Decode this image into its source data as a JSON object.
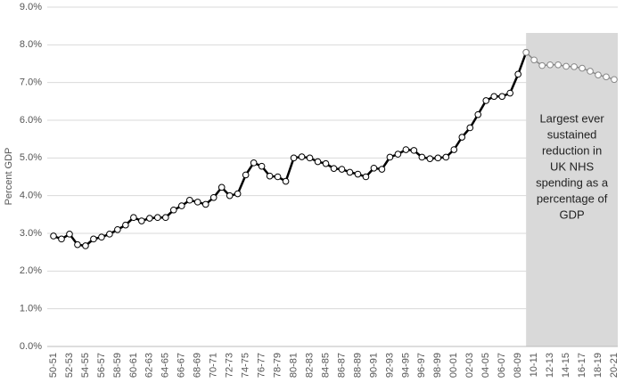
{
  "chart_data": {
    "type": "line",
    "y_label": "Percent GDP",
    "annotation": [
      "Largest ever",
      "sustained",
      "reduction in",
      "UK NHS",
      "spending as a",
      "percentage of",
      "GDP"
    ],
    "categories": [
      "50-51",
      null,
      "52-53",
      null,
      "54-55",
      null,
      "56-57",
      null,
      "58-59",
      null,
      "60-61",
      null,
      "62-63",
      null,
      "64-65",
      null,
      "66-67",
      null,
      "68-69",
      null,
      "70-71",
      null,
      "72-73",
      null,
      "74-75",
      null,
      "76-77",
      null,
      "78-79",
      null,
      "80-81",
      null,
      "82-83",
      null,
      "84-85",
      null,
      "86-87",
      null,
      "88-89",
      null,
      "90-91",
      null,
      "92-93",
      null,
      "94-95",
      null,
      "96-97",
      null,
      "98-99",
      null,
      "00-01",
      null,
      "02-03",
      null,
      "04-05",
      null,
      "06-07",
      null,
      "08-09",
      null,
      "10-11",
      null,
      "12-13",
      null,
      "14-15",
      null,
      "16-17",
      null,
      "18-19",
      null,
      "20-21"
    ],
    "series": [
      {
        "color": "#000000",
        "values": [
          2.93,
          2.85,
          2.98,
          2.7,
          2.67,
          2.85,
          2.9,
          2.98,
          3.1,
          3.22,
          3.42,
          3.33,
          3.4,
          3.42,
          3.42,
          3.62,
          3.73,
          3.88,
          3.83,
          3.77,
          3.95,
          4.22,
          4.0,
          4.05,
          4.55,
          4.87,
          4.78,
          4.52,
          4.5,
          4.38,
          5.0,
          5.03,
          5.0,
          4.9,
          4.85,
          4.72,
          4.7,
          4.62,
          4.57,
          4.5,
          4.73,
          4.7,
          5.02,
          5.1,
          5.22,
          5.2,
          5.02,
          4.98,
          5.0,
          5.02,
          5.22,
          5.55,
          5.8,
          6.15,
          6.52,
          6.63,
          6.63,
          6.72,
          7.22,
          7.8,
          null,
          null,
          null,
          null,
          null,
          null,
          null,
          null,
          null,
          null,
          null
        ]
      },
      {
        "color": "#888888",
        "values": [
          null,
          null,
          null,
          null,
          null,
          null,
          null,
          null,
          null,
          null,
          null,
          null,
          null,
          null,
          null,
          null,
          null,
          null,
          null,
          null,
          null,
          null,
          null,
          null,
          null,
          null,
          null,
          null,
          null,
          null,
          null,
          null,
          null,
          null,
          null,
          null,
          null,
          null,
          null,
          null,
          null,
          null,
          null,
          null,
          null,
          null,
          null,
          null,
          null,
          null,
          null,
          null,
          null,
          null,
          null,
          null,
          null,
          null,
          null,
          7.8,
          7.6,
          7.45,
          7.47,
          7.47,
          7.43,
          7.42,
          7.38,
          7.3,
          7.2,
          7.15,
          7.08
        ]
      }
    ],
    "ylim": [
      0,
      9
    ],
    "yticks": [
      {
        "value": 0,
        "label": "0.0%"
      },
      {
        "value": 1,
        "label": "1.0%"
      },
      {
        "value": 2,
        "label": "2.0%"
      },
      {
        "value": 3,
        "label": "3.0%"
      },
      {
        "value": 4,
        "label": "4.0%"
      },
      {
        "value": 5,
        "label": "5.0%"
      },
      {
        "value": 6,
        "label": "6.0%"
      },
      {
        "value": 7,
        "label": "7.0%"
      },
      {
        "value": 8,
        "label": "8.0%"
      },
      {
        "value": 9,
        "label": "9.0%"
      }
    ],
    "grid": true,
    "shade_color": "#d9d9d9"
  }
}
